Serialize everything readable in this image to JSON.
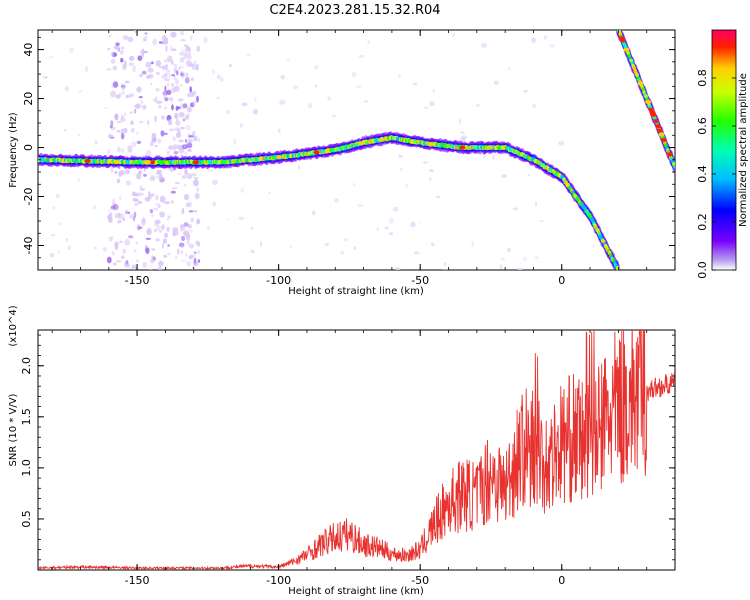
{
  "title": "C2E4.2023.281.15.32.R04",
  "chart_data": [
    {
      "type": "heatmap",
      "xlabel": "Height of straight line (km)",
      "ylabel": "Frequency (Hz)",
      "xlim": [
        -185,
        40
      ],
      "ylim": [
        -50,
        48
      ],
      "xticks": [
        -150,
        -100,
        -50,
        0
      ],
      "yticks": [
        -40,
        -20,
        0,
        20,
        40
      ],
      "colorbar": {
        "label": "Normalized spectral amplitude",
        "range": [
          0,
          1
        ],
        "ticks": [
          0.0,
          0.2,
          0.4,
          0.6,
          0.8
        ]
      },
      "ridges": [
        {
          "x": [
            -185,
            -150,
            -120,
            -100,
            -80,
            -70,
            -60,
            -50,
            -35,
            -20,
            -10,
            0,
            10,
            20
          ],
          "y": [
            -5,
            -6,
            -6,
            -4,
            -1,
            2,
            4,
            2,
            0,
            0,
            -5,
            -12,
            -28,
            -50
          ]
        },
        {
          "x": [
            20,
            40
          ],
          "y": [
            48,
            -8
          ]
        }
      ]
    },
    {
      "type": "line",
      "xlabel": "Height of straight line (km)",
      "ylabel": "SNR (10 * V/V)",
      "y_multiplier": "(x10^4)",
      "xlim": [
        -185,
        40
      ],
      "ylim": [
        0,
        2.35
      ],
      "xticks": [
        -150,
        -100,
        -50,
        0
      ],
      "yticks": [
        0.5,
        1.0,
        1.5,
        2.0
      ],
      "color": "#e8322f",
      "series": [
        {
          "x": [
            -185,
            -170,
            -150,
            -130,
            -120,
            -110,
            -100,
            -95,
            -90,
            -85,
            -80,
            -75,
            -70,
            -65,
            -60,
            -55,
            -50,
            -45,
            -40,
            -35,
            -30,
            -25,
            -20,
            -15,
            -10,
            -5,
            0,
            5,
            10,
            15,
            20,
            25,
            30,
            35,
            40
          ],
          "y": [
            0.02,
            0.03,
            0.02,
            0.02,
            0.02,
            0.04,
            0.03,
            0.08,
            0.15,
            0.25,
            0.32,
            0.35,
            0.25,
            0.22,
            0.16,
            0.14,
            0.2,
            0.45,
            0.65,
            0.75,
            0.72,
            0.95,
            0.8,
            1.15,
            1.25,
            1.05,
            1.25,
            1.3,
            1.2,
            1.45,
            1.6,
            1.7,
            1.75,
            1.8,
            1.83
          ]
        }
      ]
    }
  ]
}
